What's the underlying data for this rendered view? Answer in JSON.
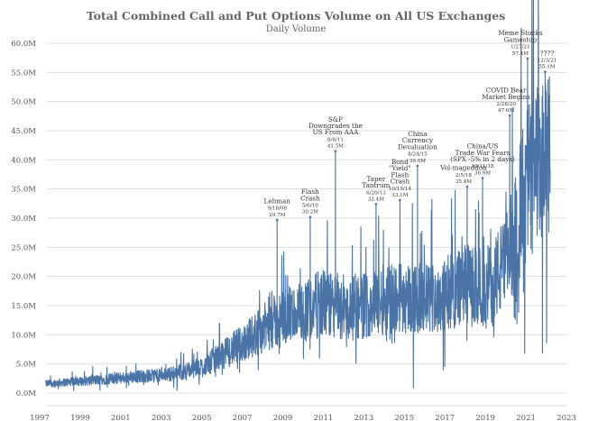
{
  "chart_data": {
    "type": "line",
    "title": "Total Combined Call and Put Options Volume on All US Exchanges",
    "subtitle": "Daily Volume",
    "xlabel": "",
    "ylabel": "",
    "ylim": [
      0,
      60
    ],
    "xlim": [
      1997,
      2023
    ],
    "y_ticks": [
      "0.0M",
      "5.0M",
      "10.0M",
      "15.0M",
      "20.0M",
      "25.0M",
      "30.0M",
      "35.0M",
      "40.0M",
      "45.0M",
      "50.0M",
      "55.0M",
      "60.0M"
    ],
    "x_ticks": [
      "1997",
      "1999",
      "2001",
      "2003",
      "2005",
      "2007",
      "2009",
      "2011",
      "2013",
      "2015",
      "2017",
      "2019",
      "2021",
      "2023"
    ],
    "grid": "horizontal",
    "color": "#4a73a6",
    "series": [
      {
        "baseline_x": [
          1997,
          1998,
          1999,
          2000,
          2001,
          2002,
          2003,
          2004,
          2005,
          2006,
          2007,
          2008,
          2009,
          2010,
          2011,
          2012,
          2013,
          2014,
          2015,
          2016,
          2017,
          2018,
          2019,
          2020,
          2020.5,
          2021,
          2021.5,
          2022
        ],
        "baseline_y": [
          1.5,
          1.8,
          2.0,
          2.3,
          2.6,
          2.9,
          3.0,
          3.6,
          4.5,
          6.5,
          8.5,
          11.0,
          13.0,
          14.0,
          15.5,
          14.0,
          15.0,
          16.0,
          16.5,
          16.0,
          17.0,
          18.5,
          18.0,
          22.0,
          28.0,
          36.0,
          38.0,
          40.0
        ],
        "spikes": [
          {
            "x": 2008.72,
            "y": 29.7
          },
          {
            "x": 2010.35,
            "y": 30.2
          },
          {
            "x": 2011.6,
            "y": 41.5
          },
          {
            "x": 2013.6,
            "y": 32.4
          },
          {
            "x": 2014.78,
            "y": 33.1
          },
          {
            "x": 2015.65,
            "y": 39.0
          },
          {
            "x": 2018.1,
            "y": 35.4
          },
          {
            "x": 2018.86,
            "y": 36.9
          },
          {
            "x": 2020.2,
            "y": 47.6
          },
          {
            "x": 2021.08,
            "y": 57.4
          },
          {
            "x": 2021.95,
            "y": 55.1
          }
        ]
      }
    ],
    "annotations": [
      {
        "x": 2008.72,
        "y": 29.7,
        "lines": [
          "Lehman",
          "9/18/08",
          "29.7M"
        ]
      },
      {
        "x": 2010.35,
        "y": 30.2,
        "lines": [
          "Flash",
          "Crash",
          "5/6/10",
          "30.2M"
        ]
      },
      {
        "x": 2011.6,
        "y": 41.5,
        "lines": [
          "S&P",
          "Downgrades the",
          "US From AAA",
          "8/8/11",
          "41.5M"
        ]
      },
      {
        "x": 2013.6,
        "y": 32.4,
        "lines": [
          "Taper",
          "Tantrum",
          "6/20/13",
          "32.4M"
        ]
      },
      {
        "x": 2014.78,
        "y": 33.1,
        "lines": [
          "Bond",
          "\"Yield\"",
          "Flash",
          "Crash",
          "10/15/14",
          "33.1M"
        ]
      },
      {
        "x": 2015.65,
        "y": 39.0,
        "lines": [
          "China",
          "Currency",
          "Devaluation",
          "8/24/15",
          "39.0M"
        ]
      },
      {
        "x": 2018.1,
        "y": 35.4,
        "lines": [
          "Vol-mageddon",
          "2/5/18",
          "35.4M"
        ]
      },
      {
        "x": 2018.86,
        "y": 36.9,
        "lines": [
          "China/US",
          "Trade War Fears",
          "(SPX -5% in 2 days)",
          "10/11/18",
          "36.9M"
        ]
      },
      {
        "x": 2020.2,
        "y": 47.6,
        "lines": [
          "COVID Bear",
          "Market Begins",
          "2/28/20",
          "47.6M"
        ]
      },
      {
        "x": 2021.08,
        "y": 57.4,
        "lines": [
          "Meme Stocks",
          "Gamestop",
          "1/27/21",
          "57.4M"
        ]
      },
      {
        "x": 2021.95,
        "y": 55.1,
        "lines": [
          "????",
          "12/3/21",
          "55.1M"
        ]
      }
    ]
  }
}
